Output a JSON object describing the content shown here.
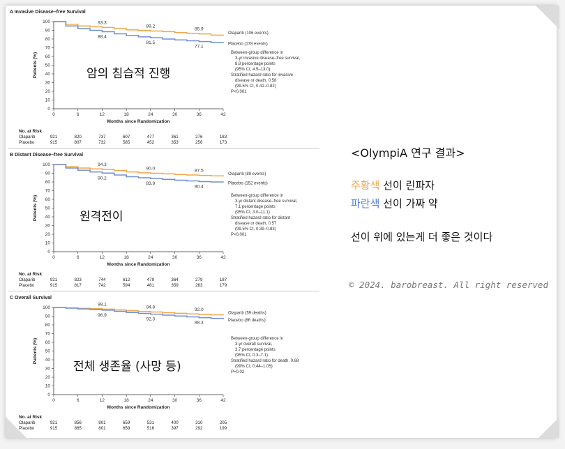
{
  "colors": {
    "olaparib": "#f0a64a",
    "placebo": "#6f8fd6",
    "orange_text": "#f0a64a",
    "blue_text": "#4f7fd6"
  },
  "chart_data": [
    {
      "type": "line",
      "panel_letter": "A",
      "title": "Invasive Disease–free Survival",
      "xlabel": "Months since Randomization",
      "ylabel": "Patients (%)",
      "xticks": [
        0,
        6,
        12,
        18,
        24,
        30,
        36,
        42
      ],
      "yticks": [
        0,
        10,
        20,
        30,
        40,
        50,
        60,
        70,
        80,
        90,
        100
      ],
      "xlim": [
        0,
        42
      ],
      "ylim": [
        0,
        100
      ],
      "series": [
        {
          "name": "Olaparib (106 events)",
          "color": "#f0a64a",
          "x": [
            0,
            3,
            6,
            9,
            12,
            15,
            18,
            21,
            24,
            27,
            30,
            33,
            36,
            39,
            42
          ],
          "y": [
            100,
            97,
            95,
            94,
            93.3,
            92,
            90.5,
            89.8,
            89.2,
            88.5,
            87.5,
            86.5,
            85.9,
            84.5,
            84
          ],
          "labels": [
            {
              "x": 12,
              "y": 93.3,
              "text": "93.3"
            },
            {
              "x": 24,
              "y": 89.2,
              "text": "89.2"
            },
            {
              "x": 36,
              "y": 85.9,
              "text": "85.9"
            }
          ]
        },
        {
          "name": "Placebo (178 events)",
          "color": "#6f8fd6",
          "x": [
            0,
            3,
            6,
            9,
            12,
            15,
            18,
            21,
            24,
            27,
            30,
            33,
            36,
            39,
            42
          ],
          "y": [
            100,
            95,
            92,
            90,
            88.4,
            86,
            84,
            82.5,
            81.5,
            80,
            79,
            78,
            77.1,
            76,
            75.5
          ],
          "labels": [
            {
              "x": 12,
              "y": 88.4,
              "text": "88.4"
            },
            {
              "x": 24,
              "y": 81.5,
              "text": "81.5"
            },
            {
              "x": 36,
              "y": 77.1,
              "text": "77.1"
            }
          ]
        }
      ],
      "annotation": [
        "Between-group difference in",
        "3-yr invasive disease–free survival,",
        "8.8 percentage points",
        "(95% CI, 4.5–13.0)",
        "Stratified hazard ratio for invasive",
        "disease or death, 0.58",
        "(99.5% CI, 0.41–0.82)",
        "P<0.001"
      ],
      "overlay_text": "암의 침습적 진행",
      "risk_table": {
        "header": "No. at Risk",
        "rows": [
          {
            "label": "Olaparib",
            "values": [
              "921",
              "820",
              "737",
              "607",
              "477",
              "361",
              "276",
              "183"
            ]
          },
          {
            "label": "Placebo",
            "values": [
              "915",
              "807",
              "732",
              "585",
              "452",
              "353",
              "256",
              "173"
            ]
          }
        ]
      }
    },
    {
      "type": "line",
      "panel_letter": "B",
      "title": "Distant Disease–free Survival",
      "xlabel": "Months since Randomization",
      "ylabel": "Patients (%)",
      "xticks": [
        0,
        6,
        12,
        18,
        24,
        30,
        36,
        42
      ],
      "yticks": [
        0,
        10,
        20,
        30,
        40,
        50,
        60,
        70,
        80,
        90,
        100
      ],
      "xlim": [
        0,
        42
      ],
      "ylim": [
        0,
        100
      ],
      "series": [
        {
          "name": "Olaparib (89 events)",
          "color": "#f0a64a",
          "x": [
            0,
            3,
            6,
            9,
            12,
            15,
            18,
            21,
            24,
            27,
            30,
            33,
            36,
            39,
            42
          ],
          "y": [
            100,
            97.5,
            96,
            95,
            94.3,
            93,
            91.5,
            90.5,
            90.0,
            89.3,
            88.5,
            88,
            87.5,
            87,
            86.5
          ],
          "labels": [
            {
              "x": 12,
              "y": 94.3,
              "text": "94.3"
            },
            {
              "x": 24,
              "y": 90.0,
              "text": "90.0"
            },
            {
              "x": 36,
              "y": 87.5,
              "text": "87.5"
            }
          ]
        },
        {
          "name": "Placebo (152 events)",
          "color": "#6f8fd6",
          "x": [
            0,
            3,
            6,
            9,
            12,
            15,
            18,
            21,
            24,
            27,
            30,
            33,
            36,
            39,
            42
          ],
          "y": [
            100,
            96,
            93.5,
            91.5,
            90.2,
            88,
            86,
            84.8,
            83.9,
            83,
            82,
            81.2,
            80.4,
            80,
            79.5
          ],
          "labels": [
            {
              "x": 12,
              "y": 90.2,
              "text": "90.2"
            },
            {
              "x": 24,
              "y": 83.9,
              "text": "83.9"
            },
            {
              "x": 36,
              "y": 80.4,
              "text": "80.4"
            }
          ]
        }
      ],
      "annotation": [
        "Between-group difference in",
        "3-yr distant disease–free survival,",
        "7.1 percentage points",
        "(95% CI, 3.0–11.1)",
        "Stratified hazard ratio for distant",
        "disease or death, 0.57",
        "(99.5% CI, 0.39–0.83)",
        "P<0.001"
      ],
      "overlay_text": "원격전이",
      "risk_table": {
        "header": "No. at Risk",
        "rows": [
          {
            "label": "Olaparib",
            "values": [
              "921",
              "823",
              "744",
              "612",
              "479",
              "364",
              "279",
              "187"
            ]
          },
          {
            "label": "Placebo",
            "values": [
              "915",
              "817",
              "742",
              "594",
              "461",
              "359",
              "263",
              "179"
            ]
          }
        ]
      }
    },
    {
      "type": "line",
      "panel_letter": "C",
      "title": "Overall Survival",
      "xlabel": "Months since Randomization",
      "ylabel": "Patients (%)",
      "xticks": [
        0,
        6,
        12,
        18,
        24,
        30,
        36,
        42
      ],
      "yticks": [
        0,
        10,
        20,
        30,
        40,
        50,
        60,
        70,
        80,
        90,
        100
      ],
      "xlim": [
        0,
        42
      ],
      "ylim": [
        0,
        100
      ],
      "series": [
        {
          "name": "Olaparib (59 deaths)",
          "color": "#f0a64a",
          "x": [
            0,
            3,
            6,
            9,
            12,
            15,
            18,
            21,
            24,
            27,
            30,
            33,
            36,
            39,
            42
          ],
          "y": [
            100,
            99.5,
            99,
            98.6,
            98.1,
            97.2,
            96.2,
            95.5,
            94.8,
            94,
            93.3,
            92.6,
            92.0,
            91.5,
            91
          ],
          "labels": [
            {
              "x": 12,
              "y": 98.1,
              "text": "98.1"
            },
            {
              "x": 24,
              "y": 94.8,
              "text": "94.8"
            },
            {
              "x": 36,
              "y": 92.0,
              "text": "92.0"
            }
          ]
        },
        {
          "name": "Placebo (86 deaths)",
          "color": "#6f8fd6",
          "x": [
            0,
            3,
            6,
            9,
            12,
            15,
            18,
            21,
            24,
            27,
            30,
            33,
            36,
            39,
            42
          ],
          "y": [
            100,
            99.2,
            98.3,
            97.6,
            96.9,
            95.6,
            94.2,
            93.2,
            92.3,
            91.2,
            90.2,
            89.2,
            88.3,
            87.5,
            86.5
          ],
          "labels": [
            {
              "x": 12,
              "y": 96.9,
              "text": "96.9"
            },
            {
              "x": 24,
              "y": 92.3,
              "text": "92.3"
            },
            {
              "x": 36,
              "y": 88.3,
              "text": "88.3"
            }
          ]
        }
      ],
      "annotation": [
        "Between-group difference in",
        "3-yr overall survival,",
        "3.7 percentage points",
        "(95% CI, 0.3–7.1)",
        "Stratified hazard ratio for death, 0.68",
        "(99% CI, 0.44–1.05)",
        "P=0.02"
      ],
      "overlay_text": "전체 생존율 (사망 등)",
      "risk_table": {
        "header": "No. at Risk",
        "rows": [
          {
            "label": "Olaparib",
            "values": [
              "921",
              "856",
              "801",
              "659",
              "531",
              "400",
              "310",
              "205"
            ]
          },
          {
            "label": "Placebo",
            "values": [
              "915",
              "865",
              "801",
              "659",
              "516",
              "397",
              "292",
              "199"
            ]
          }
        ]
      }
    }
  ],
  "notes": {
    "heading": "<OlympiA 연구 결과>",
    "line1_highlight": "주황색",
    "line1_rest": " 선이 린파자",
    "line2_highlight": "파란색",
    "line2_rest": " 선이 가짜 약",
    "conclusion": "선이 위에 있는게 더 좋은 것이다"
  },
  "watermark": "© 2024. barobreast. All right reserved"
}
